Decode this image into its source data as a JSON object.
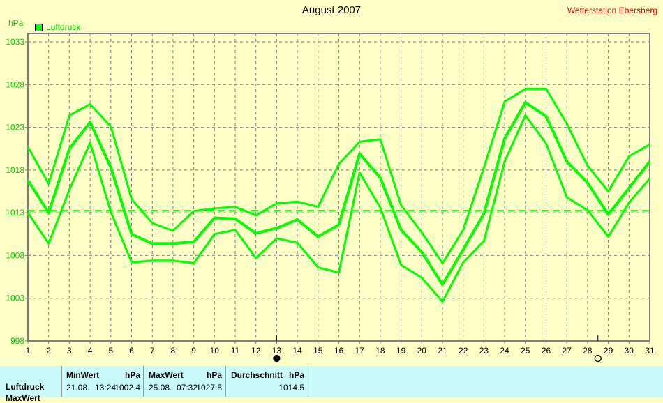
{
  "header": {
    "title": "August 2007",
    "station": "Wetterstation Ebersberg"
  },
  "chart_data": {
    "type": "line",
    "title": "August 2007",
    "ylabel": "hPa",
    "ylim": [
      998,
      1033
    ],
    "yticks": [
      998,
      1003,
      1008,
      1013,
      1018,
      1023,
      1028,
      1033
    ],
    "x": [
      1,
      2,
      3,
      4,
      5,
      6,
      7,
      8,
      9,
      10,
      11,
      12,
      13,
      14,
      15,
      16,
      17,
      18,
      19,
      20,
      21,
      22,
      23,
      24,
      25,
      26,
      27,
      28,
      29,
      30,
      31
    ],
    "grid": true,
    "legend": {
      "label": "Luftdruck",
      "placement": "top-left"
    },
    "color": "#00ff00",
    "series": [
      {
        "values": [
          1020.7,
          1016.4,
          1024.4,
          1025.7,
          1023.1,
          1014.6,
          1011.8,
          1010.9,
          1013.2,
          1013.5,
          1013.7,
          1012.7,
          1014.1,
          1014.3,
          1013.7,
          1018.7,
          1021.3,
          1021.6,
          1013.9,
          1010.7,
          1007.1,
          1011.0,
          1018.3,
          1026.0,
          1027.5,
          1027.5,
          1023.4,
          1018.5,
          1015.5,
          1019.6,
          1021.0
        ]
      },
      {
        "values": [
          1016.8,
          1013.0,
          1020.5,
          1023.6,
          1018.3,
          1010.5,
          1009.4,
          1009.4,
          1009.6,
          1012.4,
          1012.3,
          1010.6,
          1011.2,
          1012.2,
          1010.2,
          1011.6,
          1019.9,
          1017.1,
          1011.0,
          1008.4,
          1004.6,
          1008.7,
          1012.9,
          1021.7,
          1025.9,
          1024.3,
          1019.0,
          1016.5,
          1012.8,
          1015.9,
          1019.0
        ]
      },
      {
        "values": [
          1013.0,
          1009.4,
          1015.7,
          1021.2,
          1013.1,
          1007.2,
          1007.4,
          1007.4,
          1007.1,
          1010.5,
          1011.0,
          1007.7,
          1010.0,
          1009.5,
          1006.6,
          1006.0,
          1017.7,
          1013.6,
          1006.9,
          1005.4,
          1002.6,
          1007.2,
          1009.7,
          1019.0,
          1024.4,
          1021.1,
          1014.8,
          1013.3,
          1010.2,
          1014.2,
          1017.0
        ]
      }
    ],
    "reference_line": 1013.25,
    "moon_markers": [
      {
        "day": 13,
        "type": "new-moon"
      },
      {
        "day": 28.5,
        "type": "full-moon"
      }
    ]
  },
  "table": {
    "row_label": "Luftdruck",
    "row_label_2": "MaxWert",
    "min": {
      "header": "MinWert",
      "unit": "hPa",
      "date": "21.08.",
      "time": "13:24",
      "value": "1002.4"
    },
    "max": {
      "header": "MaxWert",
      "unit": "hPa",
      "date": "25.08.",
      "time": "07:32",
      "value": "1027.5"
    },
    "avg": {
      "header": "Durchschnitt",
      "unit": "hPa",
      "value": "1014.5"
    }
  }
}
